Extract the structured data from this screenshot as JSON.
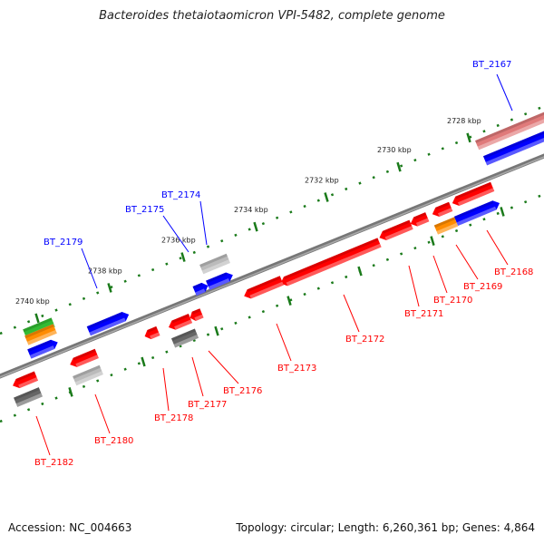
{
  "title": "Bacteroides thetaiotaomicron VPI-5482, complete genome",
  "footer": {
    "accession": "Accession: NC_004663",
    "summary": "Topology: circular; Length: 6,260,361 bp; Genes: 4,864"
  },
  "scale_labels": [
    "2740 kbp",
    "2738 kbp",
    "2736 kbp",
    "2734 kbp",
    "2732 kbp",
    "2730 kbp",
    "2728 kbp"
  ],
  "forward_genes": [
    "BT_2167",
    "BT_2174",
    "BT_2175",
    "BT_2179"
  ],
  "reverse_genes": [
    "BT_2168",
    "BT_2169",
    "BT_2170",
    "BT_2171",
    "BT_2172",
    "BT_2173",
    "BT_2176",
    "BT_2177",
    "BT_2178",
    "BT_2180",
    "BT_2182"
  ],
  "colors": {
    "forward_label": "#0000ff",
    "reverse_label": "#ff0000",
    "tick": "#1a7a1a",
    "backbone": "#777777"
  }
}
